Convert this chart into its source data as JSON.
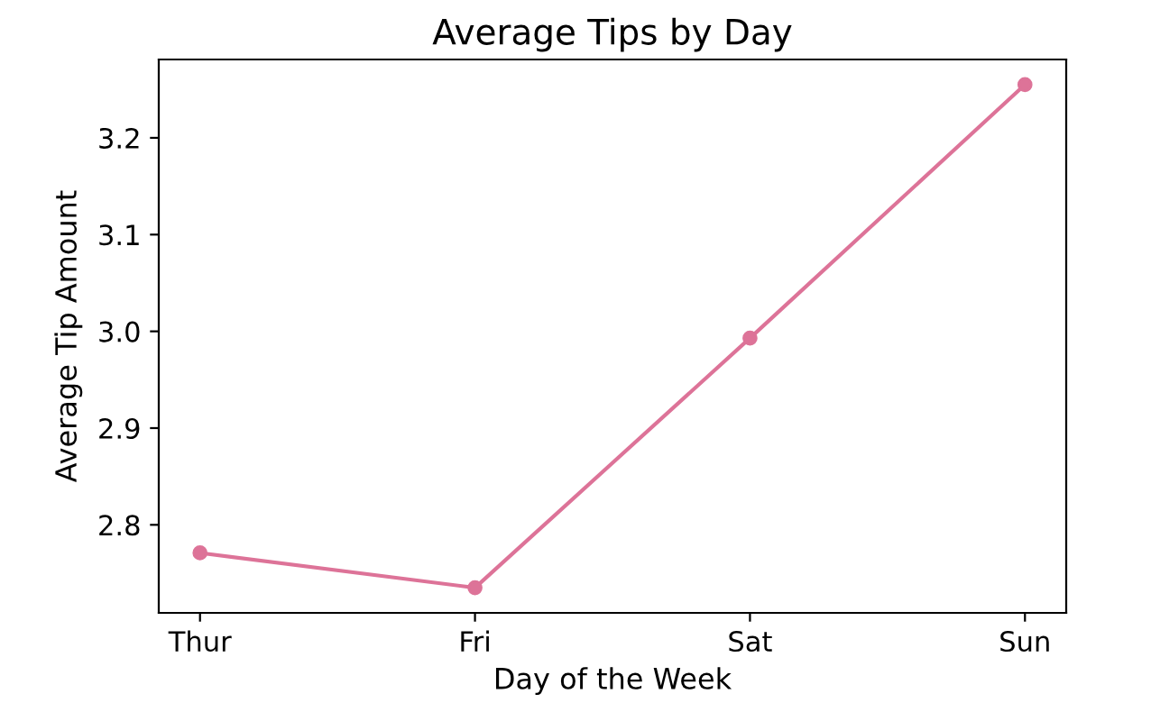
{
  "chart_data": {
    "type": "line",
    "title": "Average Tips by Day",
    "xlabel": "Day of the Week",
    "ylabel": "Average Tip Amount",
    "categories": [
      "Thur",
      "Fri",
      "Sat",
      "Sun"
    ],
    "series": [
      {
        "color": "#dd7398",
        "values": [
          2.771,
          2.735,
          2.993,
          3.255
        ]
      }
    ],
    "ylim": [
      2.709,
      3.281
    ],
    "yticks": [
      2.8,
      2.9,
      {
        "value": 3.0,
        "label": "3.0"
      },
      3.1,
      3.2
    ],
    "marker": "circle",
    "line_style": "solid",
    "grid": false
  }
}
